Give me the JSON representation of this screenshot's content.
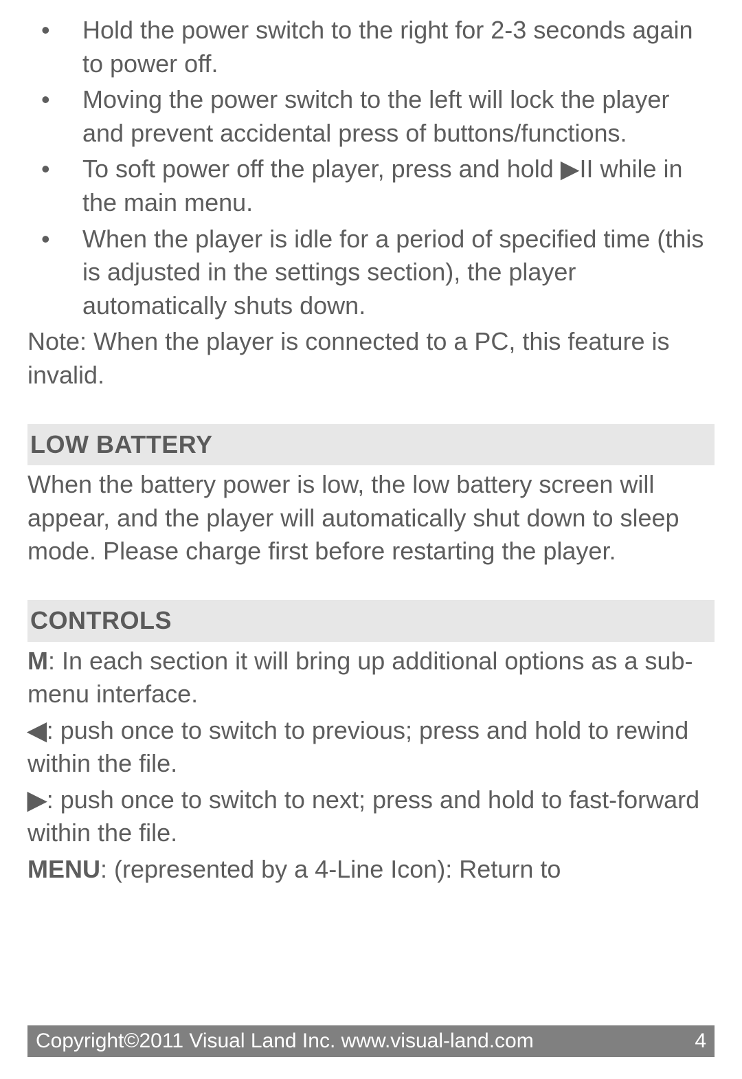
{
  "bullets": [
    "Hold the power switch to the right for 2-3 sec­onds again to power off.",
    "Moving the power switch to the left will lock the player and prevent accidental press of buttons/​functions.",
    "To soft power off the player, press and hold ▶II while in the main menu.",
    "When the player is idle for a period of specified time (this is adjusted in the settings section), the player automatically shuts down."
  ],
  "note": "Note: When the player is connected to a PC, this feature is invalid.",
  "sections": {
    "low_battery": {
      "heading": "LOW BATTERY",
      "body": "When the battery power is low, the low battery screen will appear, and the player will automatically shut down to sleep mode. Please charge first before restarting the player."
    },
    "controls": {
      "heading": "CONTROLS",
      "items": [
        {
          "key": "M",
          "desc": ": In each section it will bring up additional options as a sub-menu interface."
        },
        {
          "key": "◀",
          "desc": ": push once to switch to previous; press and hold to rewind within the file."
        },
        {
          "key": "▶",
          "desc": ": push once to switch to next; press and hold to fast-forward within the file."
        },
        {
          "key": "MENU",
          "desc": ": (represented by a 4-Line Icon): Return to"
        }
      ]
    }
  },
  "footer": {
    "copyright": "Copyright©2011 Visual Land Inc. www.visual-land.com",
    "page": "4"
  }
}
